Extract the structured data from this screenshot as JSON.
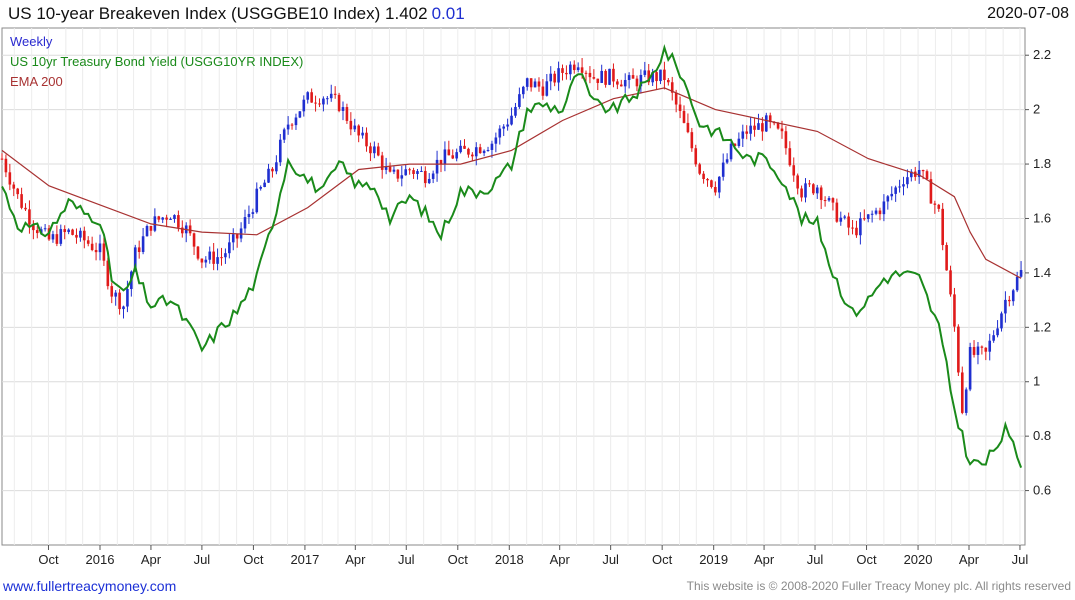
{
  "header": {
    "title": "US 10-year Breakeven Index (USGGBE10 Index) 1.402",
    "change": "0.01",
    "date": "2020-07-08"
  },
  "legend": {
    "period": "Weekly",
    "series2": "US 10yr Treasury Bond Yield (USGG10YR INDEX)",
    "series3": "EMA 200"
  },
  "footer": {
    "website": "www.fullertreacymoney.com",
    "copyright": "This website is © 2008-2020 Fuller Treacy Money plc. All rights reserved"
  },
  "colors": {
    "up": "#1f2fd0",
    "down": "#e01a1a",
    "yield": "#1a8a1a",
    "ema": "#a83232",
    "grid": "#dcdcdc"
  },
  "chart_data": {
    "type": "line",
    "ylim": [
      0.4,
      2.3
    ],
    "y_ticks": [
      0.6,
      0.8,
      1,
      1.2,
      1.4,
      1.6,
      1.8,
      2,
      2.2
    ],
    "x_tick_labels": [
      "Oct",
      "2016",
      "Apr",
      "Jul",
      "Oct",
      "2017",
      "Apr",
      "Jul",
      "Oct",
      "2018",
      "Apr",
      "Jul",
      "Oct",
      "2019",
      "Apr",
      "Jul",
      "Oct",
      "2020",
      "Apr",
      "Jul"
    ],
    "x_range": [
      "2015-07-10",
      "2020-07-10"
    ],
    "series": [
      {
        "name": "US 10-year Breakeven Index (USGGBE10 Index)",
        "style": "candlestick",
        "points": [
          [
            "2015-07-10",
            1.82
          ],
          [
            "2015-08-07",
            1.68
          ],
          [
            "2015-09-04",
            1.58
          ],
          [
            "2015-10-02",
            1.52
          ],
          [
            "2015-11-06",
            1.55
          ],
          [
            "2015-12-04",
            1.52
          ],
          [
            "2016-01-01",
            1.48
          ],
          [
            "2016-01-22",
            1.33
          ],
          [
            "2016-02-12",
            1.28
          ],
          [
            "2016-03-04",
            1.47
          ],
          [
            "2016-04-01",
            1.58
          ],
          [
            "2016-05-06",
            1.62
          ],
          [
            "2016-06-03",
            1.56
          ],
          [
            "2016-07-01",
            1.45
          ],
          [
            "2016-08-05",
            1.46
          ],
          [
            "2016-09-02",
            1.53
          ],
          [
            "2016-10-07",
            1.68
          ],
          [
            "2016-11-04",
            1.78
          ],
          [
            "2016-12-02",
            1.95
          ],
          [
            "2017-01-06",
            2.04
          ],
          [
            "2017-02-03",
            2.05
          ],
          [
            "2017-03-03",
            2.02
          ],
          [
            "2017-04-07",
            1.9
          ],
          [
            "2017-05-05",
            1.85
          ],
          [
            "2017-06-02",
            1.75
          ],
          [
            "2017-07-07",
            1.78
          ],
          [
            "2017-08-04",
            1.76
          ],
          [
            "2017-09-01",
            1.82
          ],
          [
            "2017-10-06",
            1.84
          ],
          [
            "2017-11-03",
            1.86
          ],
          [
            "2017-12-01",
            1.88
          ],
          [
            "2018-01-05",
            1.98
          ],
          [
            "2018-02-02",
            2.1
          ],
          [
            "2018-03-02",
            2.08
          ],
          [
            "2018-04-06",
            2.14
          ],
          [
            "2018-05-04",
            2.18
          ],
          [
            "2018-06-01",
            2.12
          ],
          [
            "2018-07-06",
            2.12
          ],
          [
            "2018-08-03",
            2.1
          ],
          [
            "2018-09-07",
            2.12
          ],
          [
            "2018-10-05",
            2.12
          ],
          [
            "2018-11-02",
            1.98
          ],
          [
            "2018-12-07",
            1.78
          ],
          [
            "2019-01-04",
            1.72
          ],
          [
            "2019-02-01",
            1.85
          ],
          [
            "2019-03-01",
            1.92
          ],
          [
            "2019-04-05",
            1.95
          ],
          [
            "2019-05-03",
            1.9
          ],
          [
            "2019-06-07",
            1.7
          ],
          [
            "2019-07-05",
            1.72
          ],
          [
            "2019-08-02",
            1.63
          ],
          [
            "2019-09-06",
            1.55
          ],
          [
            "2019-10-04",
            1.6
          ],
          [
            "2019-11-01",
            1.65
          ],
          [
            "2019-12-06",
            1.75
          ],
          [
            "2020-01-03",
            1.78
          ],
          [
            "2020-02-07",
            1.62
          ],
          [
            "2020-03-06",
            1.2
          ],
          [
            "2020-03-20",
            0.9
          ],
          [
            "2020-04-03",
            1.1
          ],
          [
            "2020-05-01",
            1.1
          ],
          [
            "2020-06-05",
            1.3
          ],
          [
            "2020-07-03",
            1.402
          ]
        ]
      },
      {
        "name": "US 10yr Treasury Bond Yield (USGG10YR INDEX)",
        "style": "line",
        "points": [
          [
            "2015-07-10",
            1.72
          ],
          [
            "2015-08-07",
            1.58
          ],
          [
            "2015-09-04",
            1.56
          ],
          [
            "2015-10-02",
            1.55
          ],
          [
            "2015-11-06",
            1.66
          ],
          [
            "2015-12-04",
            1.62
          ],
          [
            "2016-01-01",
            1.6
          ],
          [
            "2016-01-22",
            1.38
          ],
          [
            "2016-02-12",
            1.32
          ],
          [
            "2016-03-04",
            1.4
          ],
          [
            "2016-04-01",
            1.28
          ],
          [
            "2016-05-06",
            1.3
          ],
          [
            "2016-06-03",
            1.22
          ],
          [
            "2016-07-01",
            1.12
          ],
          [
            "2016-08-05",
            1.2
          ],
          [
            "2016-09-02",
            1.26
          ],
          [
            "2016-10-07",
            1.38
          ],
          [
            "2016-11-04",
            1.58
          ],
          [
            "2016-12-02",
            1.82
          ],
          [
            "2017-01-06",
            1.74
          ],
          [
            "2017-02-03",
            1.7
          ],
          [
            "2017-03-03",
            1.8
          ],
          [
            "2017-04-07",
            1.72
          ],
          [
            "2017-05-05",
            1.72
          ],
          [
            "2017-06-02",
            1.6
          ],
          [
            "2017-07-07",
            1.68
          ],
          [
            "2017-08-04",
            1.62
          ],
          [
            "2017-09-01",
            1.54
          ],
          [
            "2017-10-06",
            1.7
          ],
          [
            "2017-11-03",
            1.7
          ],
          [
            "2017-12-01",
            1.72
          ],
          [
            "2018-01-05",
            1.8
          ],
          [
            "2018-02-02",
            2.0
          ],
          [
            "2018-03-02",
            2.02
          ],
          [
            "2018-04-06",
            2.0
          ],
          [
            "2018-05-04",
            2.14
          ],
          [
            "2018-06-01",
            2.02
          ],
          [
            "2018-07-06",
            2.0
          ],
          [
            "2018-08-03",
            2.04
          ],
          [
            "2018-09-07",
            2.1
          ],
          [
            "2018-10-05",
            2.22
          ],
          [
            "2018-11-02",
            2.14
          ],
          [
            "2018-12-07",
            1.95
          ],
          [
            "2019-01-04",
            1.92
          ],
          [
            "2019-02-01",
            1.88
          ],
          [
            "2019-03-01",
            1.82
          ],
          [
            "2019-04-05",
            1.82
          ],
          [
            "2019-05-03",
            1.75
          ],
          [
            "2019-06-07",
            1.6
          ],
          [
            "2019-07-05",
            1.58
          ],
          [
            "2019-08-02",
            1.4
          ],
          [
            "2019-09-06",
            1.25
          ],
          [
            "2019-10-04",
            1.3
          ],
          [
            "2019-11-01",
            1.38
          ],
          [
            "2019-12-06",
            1.4
          ],
          [
            "2020-01-03",
            1.38
          ],
          [
            "2020-02-07",
            1.2
          ],
          [
            "2020-03-06",
            0.9
          ],
          [
            "2020-03-20",
            0.8
          ],
          [
            "2020-04-03",
            0.7
          ],
          [
            "2020-05-01",
            0.7
          ],
          [
            "2020-06-05",
            0.82
          ],
          [
            "2020-07-03",
            0.7
          ]
        ]
      },
      {
        "name": "EMA 200",
        "style": "line",
        "points": [
          [
            "2015-07-10",
            1.85
          ],
          [
            "2015-10-02",
            1.72
          ],
          [
            "2016-01-01",
            1.65
          ],
          [
            "2016-04-01",
            1.58
          ],
          [
            "2016-07-01",
            1.55
          ],
          [
            "2016-10-07",
            1.54
          ],
          [
            "2017-01-06",
            1.64
          ],
          [
            "2017-04-07",
            1.78
          ],
          [
            "2017-07-07",
            1.8
          ],
          [
            "2017-10-06",
            1.8
          ],
          [
            "2018-01-05",
            1.85
          ],
          [
            "2018-04-06",
            1.96
          ],
          [
            "2018-07-06",
            2.04
          ],
          [
            "2018-10-05",
            2.08
          ],
          [
            "2019-01-04",
            2.0
          ],
          [
            "2019-04-05",
            1.96
          ],
          [
            "2019-07-05",
            1.92
          ],
          [
            "2019-10-04",
            1.82
          ],
          [
            "2020-01-03",
            1.76
          ],
          [
            "2020-03-06",
            1.68
          ],
          [
            "2020-04-03",
            1.55
          ],
          [
            "2020-05-01",
            1.45
          ],
          [
            "2020-07-03",
            1.38
          ]
        ]
      }
    ]
  }
}
